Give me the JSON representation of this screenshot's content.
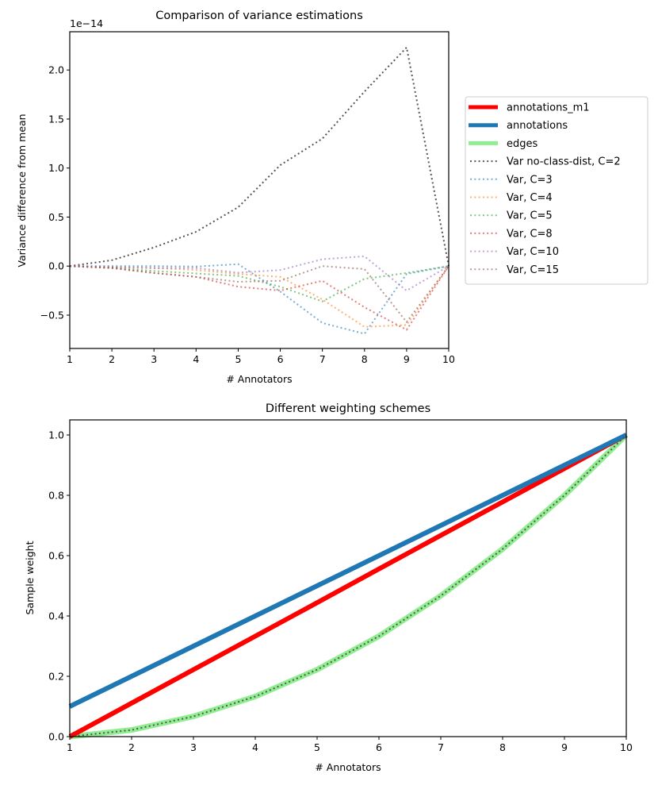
{
  "chart_data": [
    {
      "type": "line",
      "title": "Comparison of variance estimations",
      "xlabel": "# Annotators",
      "ylabel": "Variance difference from mean",
      "offset_text": "1e−14",
      "x": [
        1,
        2,
        3,
        4,
        5,
        6,
        7,
        8,
        9,
        10
      ],
      "xlim": [
        1,
        10
      ],
      "ylim": [
        -0.84,
        2.39
      ],
      "xticks": [
        1,
        2,
        3,
        4,
        5,
        6,
        7,
        8,
        9,
        10
      ],
      "xtick_labels": [
        "1",
        "2",
        "3",
        "4",
        "5",
        "6",
        "7",
        "8",
        "9",
        "10"
      ],
      "yticks": [
        -0.5,
        0.0,
        0.5,
        1.0,
        1.5,
        2.0
      ],
      "ytick_labels": [
        "−0.5",
        "0.0",
        "0.5",
        "1.0",
        "1.5",
        "2.0"
      ],
      "grid": false,
      "legend_placement": "outside-right",
      "legend": [
        {
          "label": "annotations_m1",
          "color": "#ff0000",
          "style": "solid-thick"
        },
        {
          "label": "annotations",
          "color": "#1f77b4",
          "style": "solid-thick"
        },
        {
          "label": "edges",
          "color": "#90ee90",
          "style": "solid-thick"
        },
        {
          "label": "Var no-class-dist, C=2",
          "color": "#555555",
          "style": "dotted"
        },
        {
          "label": "Var, C=3",
          "color": "#1f77b4",
          "style": "dotted"
        },
        {
          "label": "Var, C=4",
          "color": "#ff7f0e",
          "style": "dotted"
        },
        {
          "label": "Var, C=5",
          "color": "#2ca02c",
          "style": "dotted"
        },
        {
          "label": "Var, C=8",
          "color": "#d62728",
          "style": "dotted"
        },
        {
          "label": "Var, C=10",
          "color": "#9467bd",
          "style": "dotted"
        },
        {
          "label": "Var, C=15",
          "color": "#8c564b",
          "style": "dotted"
        }
      ],
      "series": [
        {
          "name": "Var no-class-dist, C=2",
          "color": "#555555",
          "alpha": 1.0,
          "values": [
            0.0,
            0.06,
            0.19,
            0.35,
            0.6,
            1.03,
            1.3,
            1.78,
            2.23,
            0.0
          ]
        },
        {
          "name": "Var, C=3",
          "color": "#1f77b4",
          "alpha": 0.6,
          "values": [
            0.0,
            0.0,
            0.0,
            -0.005,
            0.02,
            -0.26,
            -0.58,
            -0.69,
            -0.08,
            0.0
          ]
        },
        {
          "name": "Var, C=4",
          "color": "#ff7f0e",
          "alpha": 0.6,
          "values": [
            0.0,
            -0.01,
            -0.02,
            -0.04,
            -0.08,
            -0.11,
            -0.34,
            -0.62,
            -0.6,
            0.0
          ]
        },
        {
          "name": "Var, C=5",
          "color": "#2ca02c",
          "alpha": 0.6,
          "values": [
            0.0,
            -0.015,
            -0.05,
            -0.075,
            -0.1,
            -0.21,
            -0.36,
            -0.13,
            -0.07,
            0.0
          ]
        },
        {
          "name": "Var, C=8",
          "color": "#d62728",
          "alpha": 0.6,
          "values": [
            0.0,
            -0.02,
            -0.07,
            -0.11,
            -0.21,
            -0.25,
            -0.15,
            -0.42,
            -0.65,
            0.0
          ]
        },
        {
          "name": "Var, C=10",
          "color": "#9467bd",
          "alpha": 0.6,
          "values": [
            0.0,
            -0.01,
            -0.02,
            -0.02,
            -0.067,
            -0.04,
            0.07,
            0.1,
            -0.25,
            0.0
          ]
        },
        {
          "name": "Var, C=15",
          "color": "#8c564b",
          "alpha": 0.6,
          "values": [
            0.0,
            -0.02,
            -0.07,
            -0.11,
            -0.16,
            -0.15,
            0.0,
            -0.03,
            -0.57,
            0.0
          ]
        }
      ]
    },
    {
      "type": "line",
      "title": "Different weighting schemes",
      "xlabel": "# Annotators",
      "ylabel": "Sample weight",
      "x": [
        1,
        2,
        3,
        4,
        5,
        6,
        7,
        8,
        9,
        10
      ],
      "xlim": [
        1,
        10
      ],
      "ylim": [
        0.0,
        1.05
      ],
      "xticks": [
        1,
        2,
        3,
        4,
        5,
        6,
        7,
        8,
        9,
        10
      ],
      "xtick_labels": [
        "1",
        "2",
        "3",
        "4",
        "5",
        "6",
        "7",
        "8",
        "9",
        "10"
      ],
      "yticks": [
        0.0,
        0.2,
        0.4,
        0.6,
        0.8,
        1.0
      ],
      "ytick_labels": [
        "0.0",
        "0.2",
        "0.4",
        "0.6",
        "0.8",
        "1.0"
      ],
      "grid": false,
      "series": [
        {
          "name": "annotations_m1",
          "color": "#ff0000",
          "style": "solid-thick",
          "values": [
            0.0,
            0.111,
            0.222,
            0.333,
            0.444,
            0.556,
            0.667,
            0.778,
            0.889,
            1.0
          ]
        },
        {
          "name": "annotations",
          "color": "#1f77b4",
          "style": "solid-thick",
          "values": [
            0.1,
            0.2,
            0.3,
            0.4,
            0.5,
            0.6,
            0.7,
            0.8,
            0.9,
            1.0
          ]
        },
        {
          "name": "edges",
          "color": "#90ee90",
          "style": "solid-thick",
          "values": [
            0.0,
            0.022,
            0.067,
            0.133,
            0.222,
            0.333,
            0.467,
            0.622,
            0.8,
            1.0
          ]
        },
        {
          "name": "edges (dotted overlay)",
          "color": "#555555",
          "style": "dotted",
          "values": [
            0.0,
            0.022,
            0.067,
            0.133,
            0.222,
            0.333,
            0.467,
            0.622,
            0.8,
            1.0
          ]
        }
      ]
    }
  ]
}
